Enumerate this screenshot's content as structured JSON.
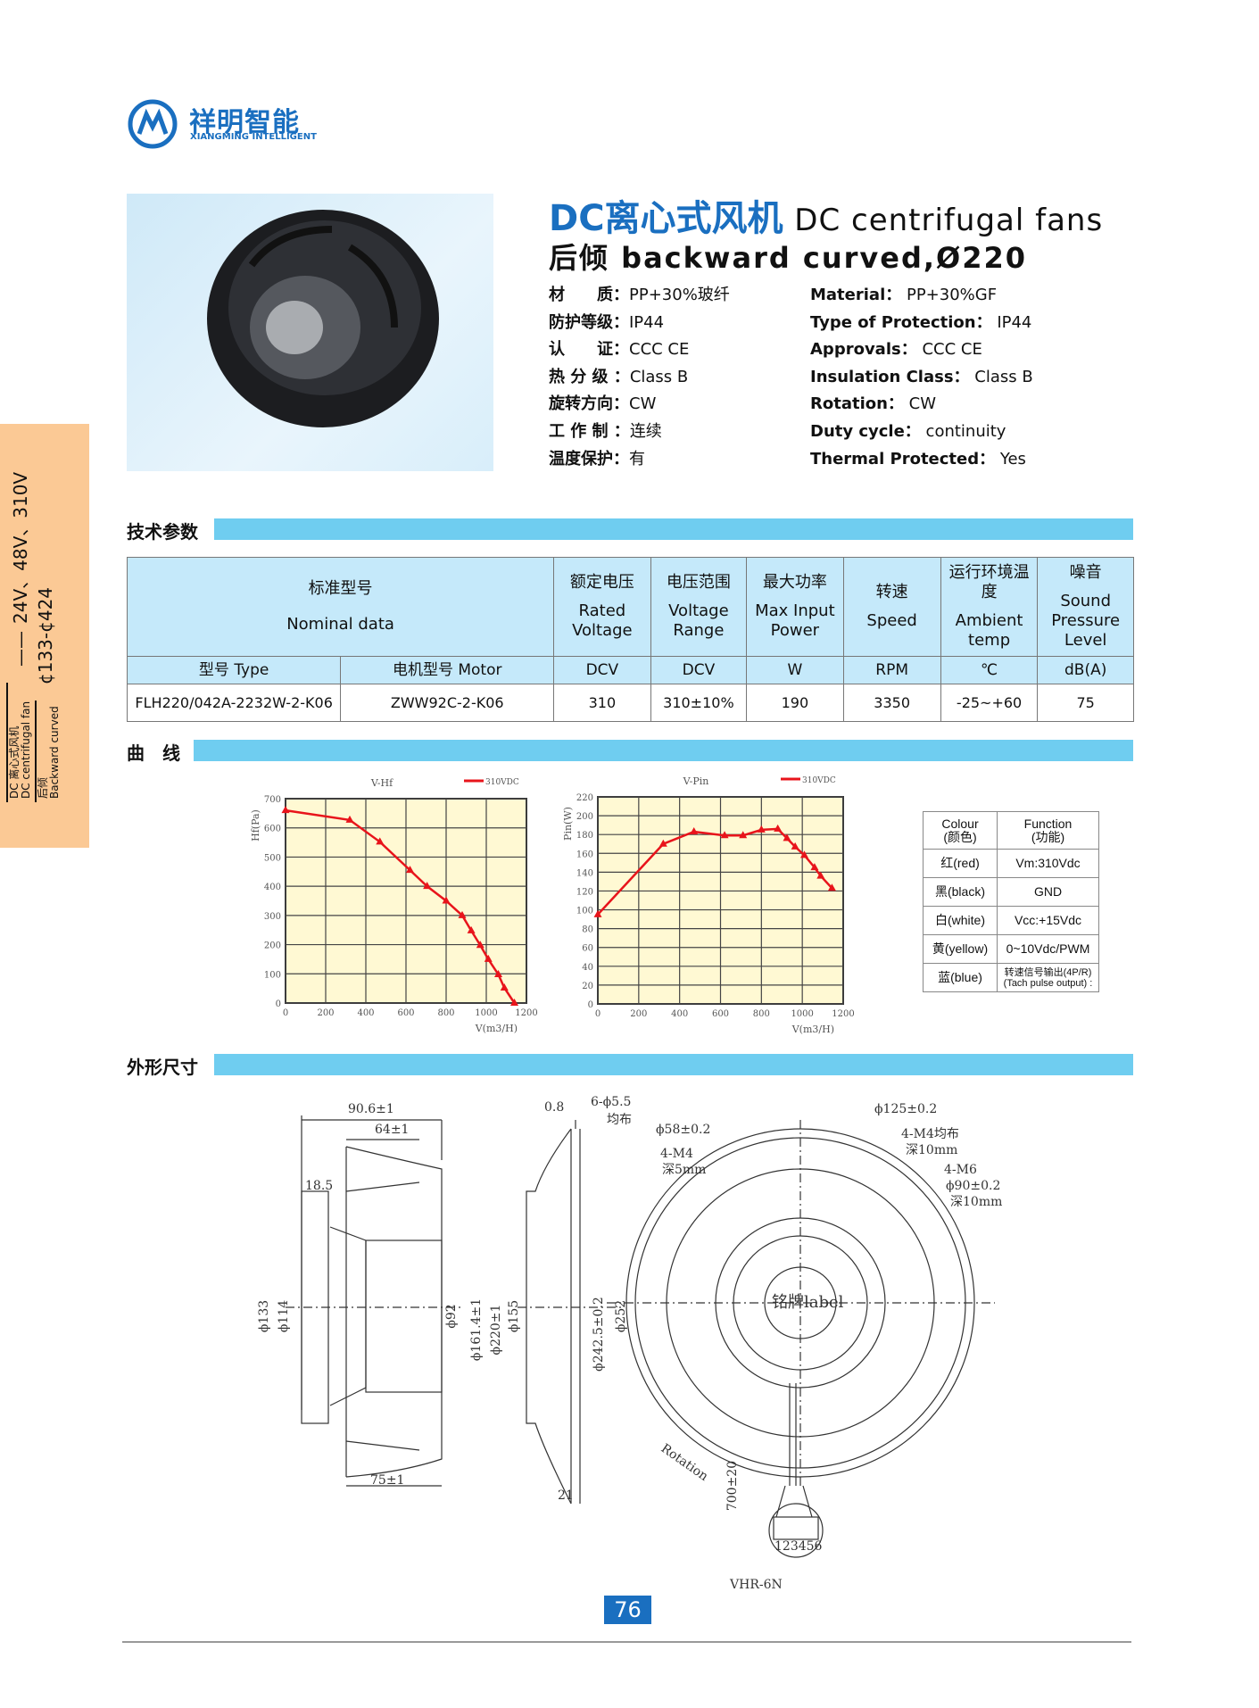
{
  "logo": {
    "cn": "祥明智能",
    "en": "XIANGMING INTELLIGENT"
  },
  "header": {
    "title_cn": "DC离心式风机",
    "title_en": "DC centrifugal fans",
    "subtitle_cn": "后倾",
    "subtitle_en": "backward curved,Ø220"
  },
  "specs_cn": [
    {
      "label": "材　　质：",
      "value": "PP+30%玻纤"
    },
    {
      "label": "防护等级：",
      "value": "IP44"
    },
    {
      "label": "认　　证：",
      "value": "CCC  CE"
    },
    {
      "label": "热 分 级 ：",
      "value": "Class  B"
    },
    {
      "label": "旋转方向：",
      "value": "CW"
    },
    {
      "label": "工 作 制 ：",
      "value": "连续"
    },
    {
      "label": "温度保护：",
      "value": "有"
    }
  ],
  "specs_en": [
    {
      "label": "Material：",
      "value": "PP+30%GF"
    },
    {
      "label": "Type of Protection：",
      "value": "IP44"
    },
    {
      "label": "Approvals：",
      "value": "CCC  CE"
    },
    {
      "label": "Insulation Class：",
      "value": "Class  B"
    },
    {
      "label": "Rotation：",
      "value": "CW"
    },
    {
      "label": "Duty cycle：",
      "value": "continuity"
    },
    {
      "label": "Thermal  Protected：",
      "value": "Yes"
    }
  ],
  "sidebar": {
    "voltages": "24V、48V、310V",
    "dash": "——",
    "range": "¢133-¢424",
    "line1_cn": "DC 离心式风机",
    "line1_en": "DC centrifugal fan",
    "line2_cn": "后倾",
    "line2_en": "Backward curved"
  },
  "sections": {
    "tech": "技术参数",
    "curves": "曲　线",
    "dims": "外形尺寸"
  },
  "table": {
    "headers": [
      {
        "cn": "标准型号",
        "en": "Nominal  data"
      },
      {
        "cn": "额定电压",
        "en": "Rated Voltage"
      },
      {
        "cn": "电压范围",
        "en": "Voltage Range"
      },
      {
        "cn": "最大功率",
        "en": "Max Input Power"
      },
      {
        "cn": "转速",
        "en": "Speed"
      },
      {
        "cn": "运行环境温度",
        "en": "Ambient temp"
      },
      {
        "cn": "噪音",
        "en": "Sound Pressure Level"
      }
    ],
    "units": [
      "型号  Type",
      "电机型号  Motor",
      "DCV",
      "DCV",
      "W",
      "RPM",
      "℃",
      "dB(A)"
    ],
    "rows": [
      [
        "FLH220/042A-2232W-2-K06",
        "ZWW92C-2-K06",
        "310",
        "310±10%",
        "190",
        "3350",
        "-25~+60",
        "75"
      ]
    ]
  },
  "chart_data": [
    {
      "type": "line",
      "title": "V-Hf",
      "xlabel": "V(m3/H)",
      "ylabel": "Hf(Pa)",
      "xlim": [
        0,
        1200
      ],
      "ylim": [
        0,
        700
      ],
      "xticks": [
        0,
        200,
        400,
        600,
        800,
        1000,
        1200
      ],
      "yticks": [
        0,
        100,
        200,
        300,
        400,
        500,
        600,
        700
      ],
      "grid": true,
      "legend": "top-right",
      "series": [
        {
          "name": "310VDC",
          "color": "#e8141b",
          "x": [
            0,
            320,
            470,
            620,
            705,
            800,
            880,
            925,
            970,
            1010,
            1060,
            1090,
            1140
          ],
          "y": [
            660,
            627,
            552,
            455,
            400,
            350,
            300,
            248,
            198,
            150,
            98,
            52,
            0
          ]
        }
      ]
    },
    {
      "type": "line",
      "title": "V-Pin",
      "xlabel": "V(m3/H)",
      "ylabel": "Pin(W)",
      "xlim": [
        0,
        1200
      ],
      "ylim": [
        0,
        220
      ],
      "xticks": [
        0,
        200,
        400,
        600,
        800,
        1000,
        1200
      ],
      "yticks": [
        0,
        20,
        40,
        60,
        80,
        100,
        120,
        140,
        160,
        180,
        200,
        220
      ],
      "grid": true,
      "legend": "top-right",
      "series": [
        {
          "name": "310VDC",
          "color": "#e8141b",
          "x": [
            0,
            320,
            470,
            620,
            710,
            800,
            880,
            925,
            965,
            1010,
            1060,
            1090,
            1145
          ],
          "y": [
            95,
            170,
            183,
            179,
            179,
            185,
            186,
            176,
            167,
            158,
            145,
            136,
            123
          ]
        }
      ]
    }
  ],
  "wires": {
    "headers": [
      "Colour\n(颜色)",
      "Function\n(功能)"
    ],
    "rows": [
      [
        "红(red)",
        "Vm:310Vdc"
      ],
      [
        "黑(black)",
        "GND"
      ],
      [
        "白(white)",
        "Vcc:+15Vdc"
      ],
      [
        "黄(yellow)",
        "0~10Vdc/PWM"
      ],
      [
        "蓝(blue)",
        "转速信号输出(4P/R)\n(Tach pulse output) :"
      ]
    ]
  },
  "drawing": {
    "labels": [
      "90.6±1",
      "64±1",
      "18.5",
      "ϕ133",
      "ϕ114",
      "ϕ92",
      "ϕ161.4±1",
      "ϕ220±1",
      "ϕ155",
      "75±1",
      "0.8",
      "6-ϕ5.5",
      "均布",
      "ϕ242.5±0.2",
      "ϕ252",
      "21",
      "ϕ58±0.2",
      "4-M4",
      "深5mm",
      "ϕ125±0.2",
      "4-M4均布",
      "深10mm",
      "4-M6",
      "ϕ90±0.2",
      "深10mm",
      "铭牌label",
      "Rotation",
      "700±20",
      "123456",
      "VHR-6N"
    ]
  },
  "page": {
    "number": "76"
  }
}
